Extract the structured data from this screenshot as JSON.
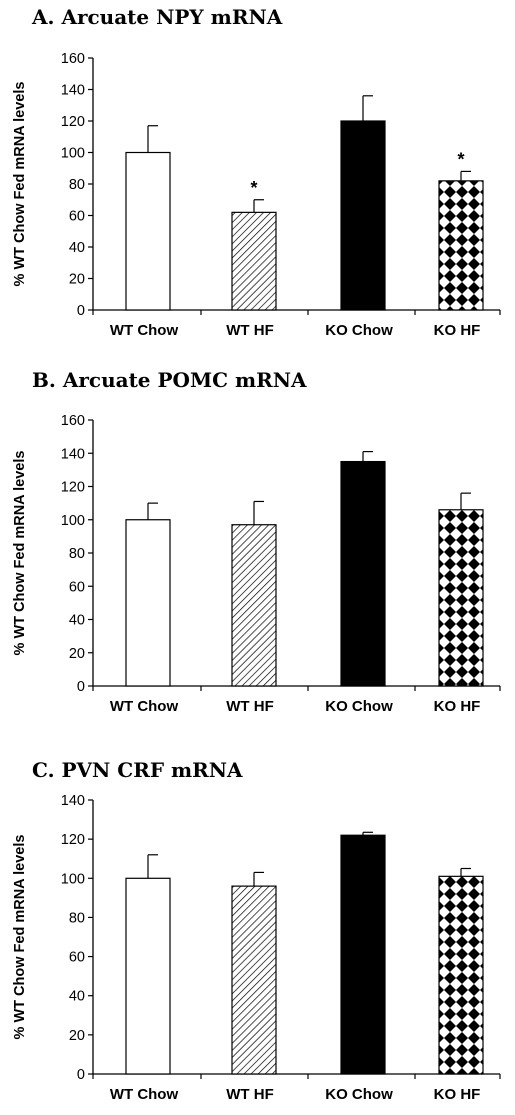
{
  "chart_data": [
    {
      "type": "bar",
      "title": "A. Arcuate NPY mRNA",
      "ylabel": "% WT Chow Fed mRNA levels",
      "xlabel": "",
      "categories": [
        "WT Chow",
        "WT HF",
        "KO Chow",
        "KO HF"
      ],
      "values": [
        100,
        62,
        120,
        82
      ],
      "errors": [
        17,
        8,
        16,
        6
      ],
      "significance": [
        "",
        "*",
        "",
        "*"
      ],
      "ylim": [
        0,
        160
      ],
      "yticks": [
        0,
        20,
        40,
        60,
        80,
        100,
        120,
        140,
        160
      ],
      "fills": [
        "white",
        "hatch",
        "black",
        "checker"
      ],
      "grid": false
    },
    {
      "type": "bar",
      "title": "B. Arcuate POMC mRNA",
      "ylabel": "% WT Chow Fed mRNA levels",
      "xlabel": "",
      "categories": [
        "WT Chow",
        "WT HF",
        "KO Chow",
        "KO HF"
      ],
      "values": [
        100,
        97,
        135,
        106
      ],
      "errors": [
        10,
        14,
        6,
        10
      ],
      "significance": [
        "",
        "",
        "",
        ""
      ],
      "ylim": [
        0,
        160
      ],
      "yticks": [
        0,
        20,
        40,
        60,
        80,
        100,
        120,
        140,
        160
      ],
      "fills": [
        "white",
        "hatch",
        "black",
        "checker"
      ],
      "grid": false
    },
    {
      "type": "bar",
      "title": "C. PVN CRF mRNA",
      "ylabel": "% WT Chow Fed mRNA levels",
      "xlabel": "",
      "categories": [
        "WT Chow",
        "WT HF",
        "KO Chow",
        "KO HF"
      ],
      "values": [
        100,
        96,
        122,
        101
      ],
      "errors": [
        12,
        7,
        1.5,
        4
      ],
      "significance": [
        "",
        "",
        "",
        ""
      ],
      "ylim": [
        0,
        140
      ],
      "yticks": [
        0,
        20,
        40,
        60,
        80,
        100,
        120,
        140
      ],
      "fills": [
        "white",
        "hatch",
        "black",
        "checker"
      ],
      "grid": false
    }
  ]
}
